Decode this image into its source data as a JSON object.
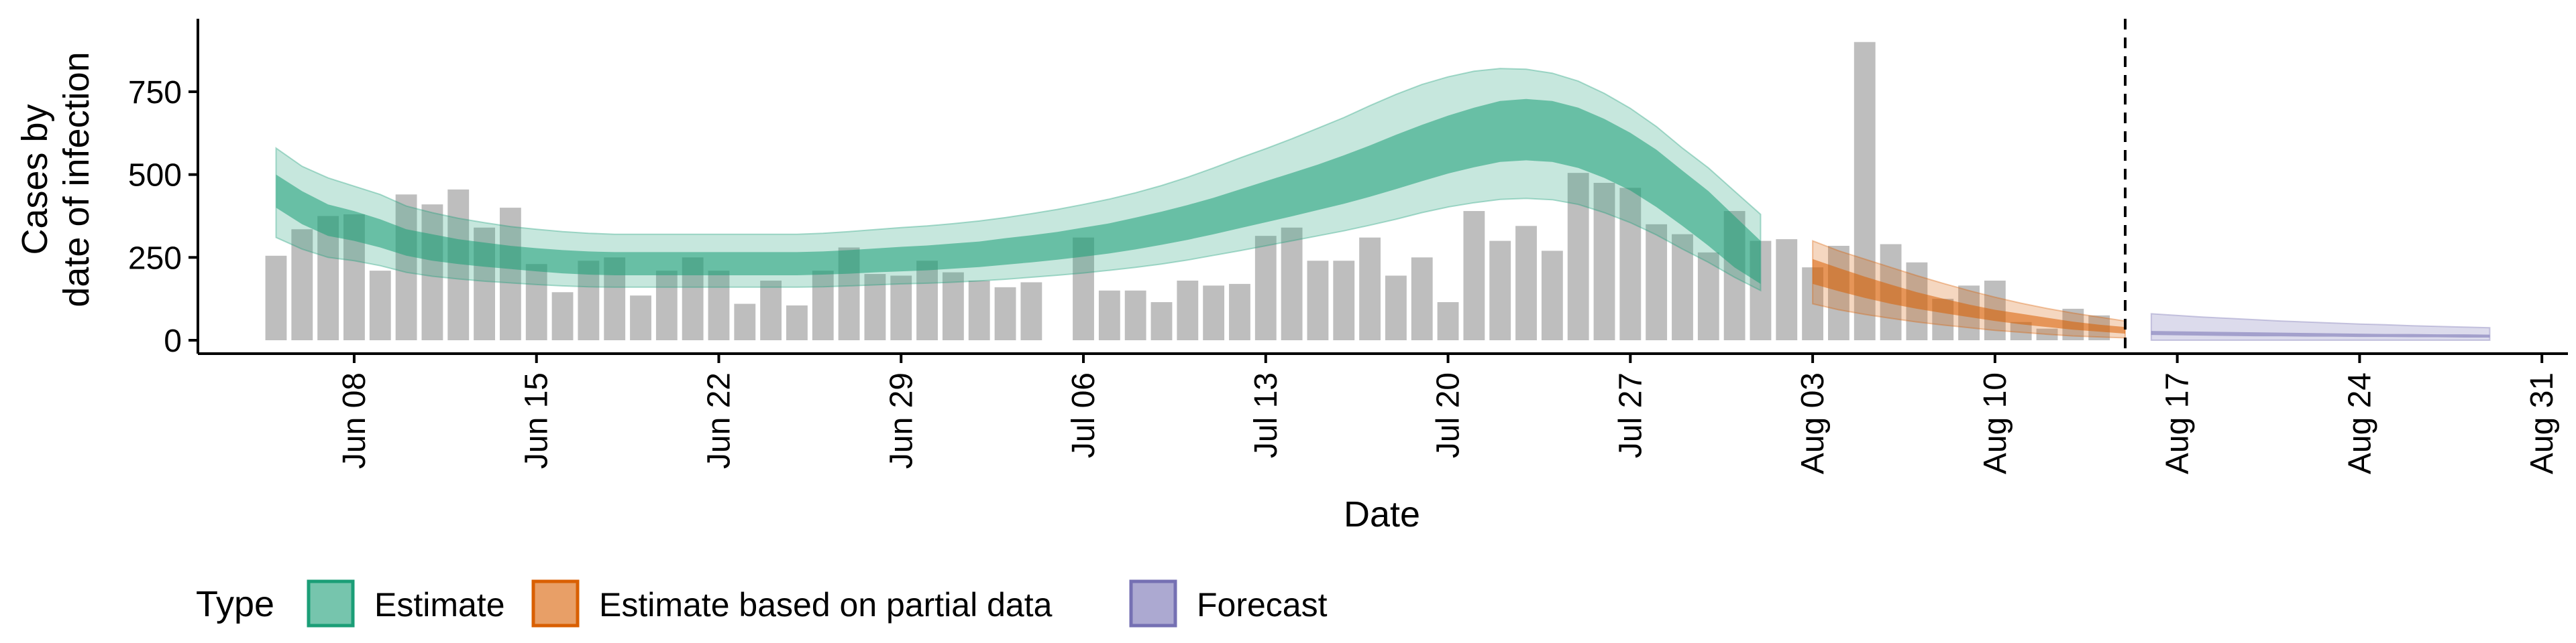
{
  "chart_data": {
    "type": "bar",
    "xlabel": "Date",
    "ylabel_lines": [
      "Cases by",
      "date of infection"
    ],
    "ylim": [
      0,
      950
    ],
    "y_ticks": [
      0,
      250,
      500,
      750
    ],
    "x_range": [
      "2020-06-02",
      "2020-09-01"
    ],
    "x_ticks": [
      {
        "date": "2020-06-08",
        "label": "Jun 08"
      },
      {
        "date": "2020-06-15",
        "label": "Jun 15"
      },
      {
        "date": "2020-06-22",
        "label": "Jun 22"
      },
      {
        "date": "2020-06-29",
        "label": "Jun 29"
      },
      {
        "date": "2020-07-06",
        "label": "Jul 06"
      },
      {
        "date": "2020-07-13",
        "label": "Jul 13"
      },
      {
        "date": "2020-07-20",
        "label": "Jul 20"
      },
      {
        "date": "2020-07-27",
        "label": "Jul 27"
      },
      {
        "date": "2020-08-03",
        "label": "Aug 03"
      },
      {
        "date": "2020-08-10",
        "label": "Aug 10"
      },
      {
        "date": "2020-08-17",
        "label": "Aug 17"
      },
      {
        "date": "2020-08-24",
        "label": "Aug 24"
      },
      {
        "date": "2020-08-31",
        "label": "Aug 31"
      }
    ],
    "vline_date": "2020-08-15",
    "grid": false,
    "bars": {
      "start_date": "2020-06-05",
      "color": "#bebebe",
      "values": [
        255,
        335,
        375,
        380,
        210,
        440,
        410,
        455,
        340,
        400,
        230,
        145,
        240,
        250,
        135,
        210,
        250,
        210,
        110,
        180,
        105,
        210,
        280,
        200,
        195,
        240,
        205,
        180,
        160,
        175,
        0,
        310,
        150,
        150,
        115,
        180,
        165,
        170,
        315,
        340,
        240,
        240,
        310,
        195,
        250,
        115,
        390,
        300,
        345,
        270,
        505,
        475,
        460,
        350,
        320,
        265,
        390,
        300,
        305,
        220,
        285,
        900,
        290,
        235,
        125,
        165,
        180,
        55,
        35,
        95,
        75
      ]
    },
    "series": [
      {
        "name": "Estimate",
        "color": "#1b9e77",
        "start_date": "2020-06-05",
        "median": [
          450,
          400,
          360,
          345,
          320,
          295,
          280,
          268,
          258,
          250,
          242,
          236,
          232,
          230,
          230,
          230,
          230,
          230,
          230,
          230,
          230,
          232,
          236,
          240,
          244,
          248,
          254,
          260,
          268,
          276,
          285,
          296,
          308,
          322,
          338,
          356,
          375,
          396,
          418,
          440,
          462,
          485,
          510,
          538,
          565,
          590,
          612,
          630,
          635,
          630,
          612,
          580,
          540,
          490,
          430,
          370,
          300,
          235
        ],
        "inner": [
          [
            400,
            500
          ],
          [
            350,
            450
          ],
          [
            315,
            410
          ],
          [
            300,
            390
          ],
          [
            280,
            365
          ],
          [
            255,
            335
          ],
          [
            240,
            320
          ],
          [
            230,
            305
          ],
          [
            222,
            295
          ],
          [
            215,
            285
          ],
          [
            208,
            278
          ],
          [
            202,
            272
          ],
          [
            198,
            268
          ],
          [
            196,
            266
          ],
          [
            196,
            266
          ],
          [
            196,
            266
          ],
          [
            196,
            266
          ],
          [
            196,
            266
          ],
          [
            196,
            266
          ],
          [
            196,
            266
          ],
          [
            196,
            266
          ],
          [
            198,
            268
          ],
          [
            201,
            272
          ],
          [
            205,
            277
          ],
          [
            208,
            282
          ],
          [
            211,
            286
          ],
          [
            216,
            292
          ],
          [
            221,
            298
          ],
          [
            228,
            308
          ],
          [
            235,
            317
          ],
          [
            243,
            327
          ],
          [
            252,
            340
          ],
          [
            262,
            353
          ],
          [
            274,
            370
          ],
          [
            288,
            388
          ],
          [
            303,
            408
          ],
          [
            320,
            430
          ],
          [
            338,
            455
          ],
          [
            356,
            480
          ],
          [
            374,
            505
          ],
          [
            393,
            530
          ],
          [
            412,
            558
          ],
          [
            433,
            588
          ],
          [
            456,
            620
          ],
          [
            480,
            650
          ],
          [
            503,
            678
          ],
          [
            522,
            702
          ],
          [
            538,
            722
          ],
          [
            543,
            728
          ],
          [
            538,
            722
          ],
          [
            520,
            702
          ],
          [
            490,
            668
          ],
          [
            452,
            626
          ],
          [
            402,
            575
          ],
          [
            345,
            512
          ],
          [
            285,
            450
          ],
          [
            220,
            375
          ],
          [
            170,
            300
          ]
        ],
        "outer": [
          [
            310,
            580
          ],
          [
            275,
            525
          ],
          [
            250,
            490
          ],
          [
            240,
            465
          ],
          [
            225,
            440
          ],
          [
            205,
            405
          ],
          [
            193,
            385
          ],
          [
            185,
            368
          ],
          [
            178,
            355
          ],
          [
            173,
            343
          ],
          [
            168,
            335
          ],
          [
            164,
            328
          ],
          [
            161,
            323
          ],
          [
            160,
            320
          ],
          [
            160,
            320
          ],
          [
            160,
            320
          ],
          [
            160,
            320
          ],
          [
            160,
            320
          ],
          [
            160,
            320
          ],
          [
            160,
            320
          ],
          [
            160,
            320
          ],
          [
            161,
            323
          ],
          [
            164,
            328
          ],
          [
            167,
            334
          ],
          [
            170,
            340
          ],
          [
            172,
            345
          ],
          [
            175,
            352
          ],
          [
            179,
            360
          ],
          [
            184,
            370
          ],
          [
            190,
            382
          ],
          [
            196,
            395
          ],
          [
            203,
            410
          ],
          [
            211,
            426
          ],
          [
            220,
            445
          ],
          [
            230,
            467
          ],
          [
            242,
            492
          ],
          [
            256,
            520
          ],
          [
            270,
            550
          ],
          [
            285,
            578
          ],
          [
            300,
            608
          ],
          [
            315,
            640
          ],
          [
            330,
            672
          ],
          [
            347,
            708
          ],
          [
            365,
            742
          ],
          [
            385,
            772
          ],
          [
            402,
            795
          ],
          [
            415,
            812
          ],
          [
            425,
            820
          ],
          [
            428,
            818
          ],
          [
            424,
            806
          ],
          [
            410,
            782
          ],
          [
            385,
            745
          ],
          [
            355,
            700
          ],
          [
            318,
            645
          ],
          [
            275,
            580
          ],
          [
            235,
            520
          ],
          [
            190,
            450
          ],
          [
            150,
            380
          ]
        ]
      },
      {
        "name": "Estimate based on partial data",
        "color": "#d95f02",
        "start_date": "2020-08-03",
        "median": [
          205,
          180,
          160,
          140,
          120,
          105,
          90,
          75,
          65,
          55,
          45,
          38,
          32
        ],
        "inner": [
          [
            170,
            245
          ],
          [
            148,
            218
          ],
          [
            128,
            192
          ],
          [
            110,
            168
          ],
          [
            95,
            145
          ],
          [
            82,
            126
          ],
          [
            70,
            108
          ],
          [
            58,
            92
          ],
          [
            48,
            80
          ],
          [
            40,
            68
          ],
          [
            32,
            56
          ],
          [
            26,
            47
          ],
          [
            20,
            40
          ]
        ],
        "outer": [
          [
            110,
            300
          ],
          [
            92,
            270
          ],
          [
            78,
            245
          ],
          [
            66,
            220
          ],
          [
            55,
            195
          ],
          [
            46,
            172
          ],
          [
            38,
            150
          ],
          [
            30,
            130
          ],
          [
            24,
            112
          ],
          [
            18,
            96
          ],
          [
            13,
            82
          ],
          [
            10,
            70
          ],
          [
            7,
            58
          ]
        ]
      },
      {
        "name": "Forecast",
        "color": "#7570b3",
        "start_date": "2020-08-16",
        "median": [
          22,
          21,
          20,
          19,
          18,
          17,
          17,
          16,
          15,
          15,
          14,
          14,
          13,
          13
        ],
        "inner": [
          [
            16,
            28
          ],
          [
            15,
            27
          ],
          [
            14,
            26
          ],
          [
            13,
            25
          ],
          [
            12,
            24
          ],
          [
            12,
            23
          ],
          [
            11,
            22
          ],
          [
            11,
            21
          ],
          [
            10,
            20
          ],
          [
            10,
            19
          ],
          [
            9,
            19
          ],
          [
            9,
            18
          ],
          [
            8,
            18
          ],
          [
            8,
            17
          ]
        ],
        "outer": [
          [
            0,
            80
          ],
          [
            0,
            75
          ],
          [
            0,
            70
          ],
          [
            0,
            66
          ],
          [
            0,
            62
          ],
          [
            0,
            58
          ],
          [
            0,
            55
          ],
          [
            0,
            52
          ],
          [
            0,
            49
          ],
          [
            0,
            47
          ],
          [
            0,
            44
          ],
          [
            0,
            42
          ],
          [
            0,
            40
          ],
          [
            0,
            38
          ]
        ]
      }
    ],
    "legend": {
      "title": "Type",
      "position": "bottom",
      "items": [
        {
          "label": "Estimate",
          "color": "#1b9e77"
        },
        {
          "label": "Estimate based on partial data",
          "color": "#d95f02"
        },
        {
          "label": "Forecast",
          "color": "#7570b3"
        }
      ]
    }
  }
}
